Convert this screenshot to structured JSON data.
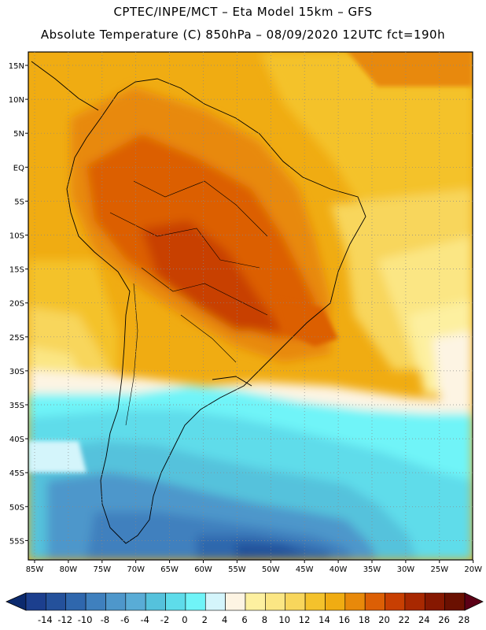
{
  "header": {
    "line1": "CPTEC/INPE/MCT –  Eta Model 15km – GFS",
    "line2": "Absolute Temperature (C) 850hPa – 08/09/2020 12UTC fct=190h"
  },
  "map": {
    "region": "South America",
    "lon_labels": [
      "85W",
      "80W",
      "75W",
      "70W",
      "65W",
      "60W",
      "55W",
      "50W",
      "45W",
      "40W",
      "35W",
      "30W",
      "25W",
      "20W"
    ],
    "lat_labels": [
      "15N",
      "10N",
      "5N",
      "EQ",
      "5S",
      "10S",
      "15S",
      "20S",
      "25S",
      "30S",
      "35S",
      "40S",
      "45S",
      "50S",
      "55S"
    ]
  },
  "colorbar": {
    "labels": [
      "-14",
      "-12",
      "-10",
      "-8",
      "-6",
      "-4",
      "-2",
      "0",
      "2",
      "4",
      "6",
      "8",
      "10",
      "12",
      "14",
      "16",
      "18",
      "20",
      "22",
      "24",
      "26",
      "28"
    ],
    "colors": [
      "#1c3f8e",
      "#24519b",
      "#2f67ad",
      "#3f80be",
      "#4e97cb",
      "#59acd6",
      "#55c2dc",
      "#5edcea",
      "#70f4f8",
      "#d4f5fb",
      "#fdf4e3",
      "#fdf0a0",
      "#fbe684",
      "#f8d65c",
      "#f4c22c",
      "#f0ac12",
      "#e8890a",
      "#dc5f05",
      "#c83f02",
      "#a82801",
      "#861801",
      "#6a1001"
    ],
    "low_arrow_color": "#0c2a6e",
    "high_arrow_color": "#5c0016"
  }
}
